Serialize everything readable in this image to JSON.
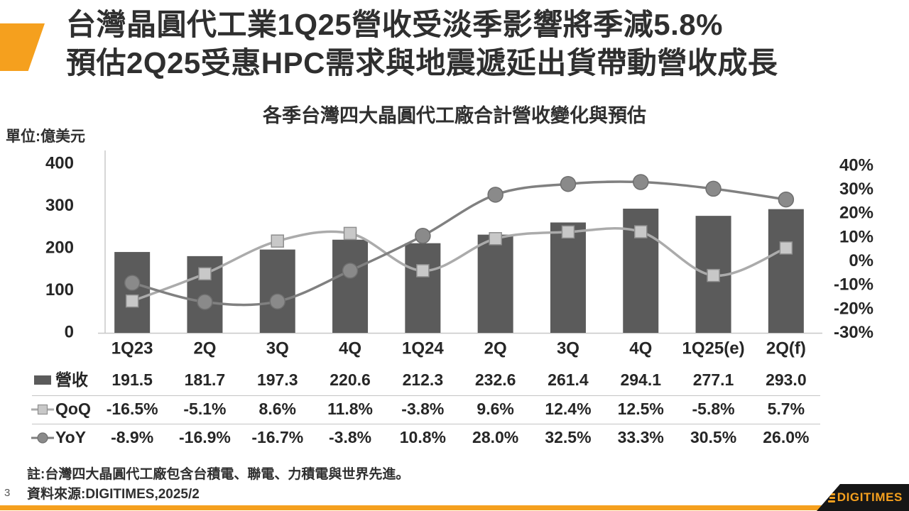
{
  "header": {
    "title_line1": "台灣晶圓代工業1Q25營收受淡季影響將季減5.8%",
    "title_line2": "預估2Q25受惠HPC需求與地震遞延出貨帶動營收成長"
  },
  "chart": {
    "title": "各季台灣四大晶圓代工廠合計營收變化與預估",
    "unit_label": "單位:億美元"
  },
  "chart_data": {
    "type": "combo",
    "categories": [
      "1Q23",
      "2Q",
      "3Q",
      "4Q",
      "1Q24",
      "2Q",
      "3Q",
      "4Q",
      "1Q25(e)",
      "2Q(f)"
    ],
    "series": [
      {
        "name": "營收",
        "type": "bar",
        "axis": "left",
        "values": [
          191.5,
          181.7,
          197.3,
          220.6,
          212.3,
          232.6,
          261.4,
          294.1,
          277.1,
          293.0
        ]
      },
      {
        "name": "QoQ",
        "type": "line",
        "marker": "square",
        "axis": "right",
        "unit": "%",
        "values": [
          -16.5,
          -5.1,
          8.6,
          11.8,
          -3.8,
          9.6,
          12.4,
          12.5,
          -5.8,
          5.7
        ]
      },
      {
        "name": "YoY",
        "type": "line",
        "marker": "circle",
        "axis": "right",
        "unit": "%",
        "values": [
          -8.9,
          -16.9,
          -16.7,
          -3.8,
          10.8,
          28.0,
          32.5,
          33.3,
          30.5,
          26.0
        ]
      }
    ],
    "title": "各季台灣四大晶圓代工廠合計營收變化與預估",
    "xlabel": "",
    "ylabel": "單位:億美元",
    "left_axis": {
      "ticks": [
        400,
        300,
        200,
        100,
        0
      ],
      "min": 0,
      "max": 400
    },
    "right_axis": {
      "ticks": [
        40,
        30,
        20,
        10,
        0,
        -10,
        -20,
        -30
      ],
      "min": -30,
      "max": 40,
      "unit": "%"
    },
    "grid": false,
    "legend_position": "table-left",
    "line_style": "smooth"
  },
  "footer": {
    "note": "註:台灣四大晶圓代工廠包含台積電、聯電、力積電與世界先進。",
    "source": "資料來源:DIGITIMES,2025/2",
    "page_number": "3",
    "logo_text": "DIGITIMES"
  },
  "colors": {
    "accent": "#F5A01E",
    "bar": "#5B5B5B",
    "qoq_line": "#ABABAB",
    "qoq_marker_fill": "#C8C8C8",
    "qoq_marker_stroke": "#8F8F8F",
    "yoy_line": "#808080",
    "yoy_marker_fill": "#8A8A8A",
    "yoy_marker_stroke": "#6F6F6F",
    "text": "#262626",
    "grid": "#C8C8C8",
    "separator": "#C4C4C4",
    "logo_bg": "#161616"
  }
}
